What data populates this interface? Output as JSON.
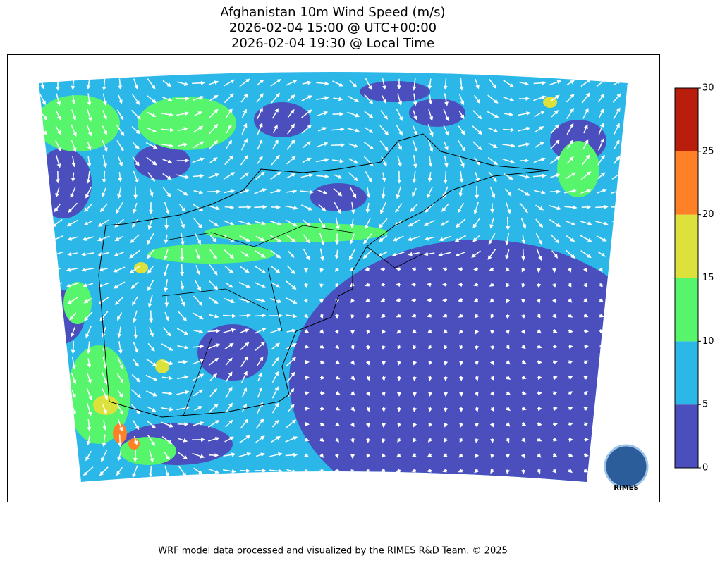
{
  "title": [
    "Afghanistan 10m Wind Speed (m/s)",
    "2026-02-04 15:00 @ UTC+00:00",
    "2026-02-04 19:30 @ Local Time"
  ],
  "colorbar": {
    "lim": [
      0,
      30
    ],
    "ticks": [
      0,
      5,
      10,
      15,
      20,
      25,
      30
    ],
    "colors": [
      "#4a4fbd",
      "#2bb8e8",
      "#56f56c",
      "#dde13c",
      "#ff8127",
      "#b81e0b"
    ]
  },
  "logo": "RIMES",
  "footer": "WRF model data processed and visualized by the RIMES R&D Team. © 2025"
}
